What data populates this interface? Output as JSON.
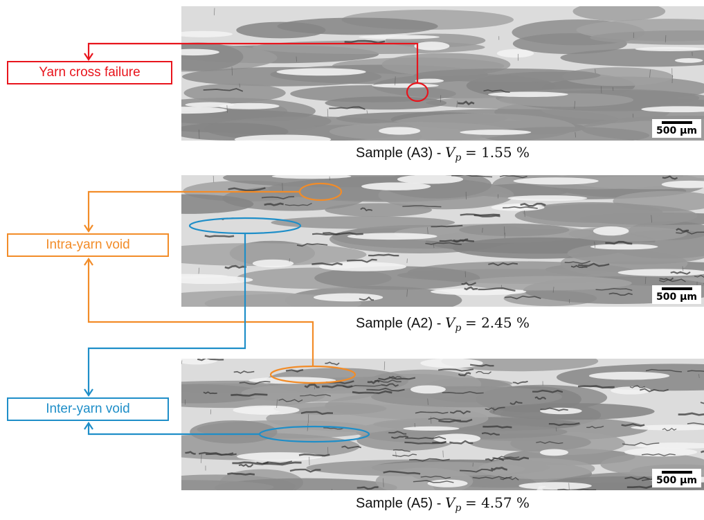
{
  "colors": {
    "red": "#e8141c",
    "orange": "#f28c28",
    "blue": "#1e8ec8"
  },
  "labels": {
    "yarn_cross_failure": "Yarn cross failure",
    "intra_yarn_void": "Intra-yarn void",
    "inter_yarn_void": "Inter-yarn void"
  },
  "panels": [
    {
      "id": "A3",
      "caption_prefix": "Sample (A3) - ",
      "vp_symbol": "V",
      "vp_sub": "p",
      "vp_value": "= 1.55 %",
      "scale_label": "500 µm"
    },
    {
      "id": "A2",
      "caption_prefix": "Sample (A2) - ",
      "vp_symbol": "V",
      "vp_sub": "p",
      "vp_value": "= 2.45 %",
      "scale_label": "500 µm"
    },
    {
      "id": "A5",
      "caption_prefix": "Sample (A5) - ",
      "vp_symbol": "V",
      "vp_sub": "p",
      "vp_value": "= 4.57 %",
      "scale_label": "500 µm"
    }
  ]
}
